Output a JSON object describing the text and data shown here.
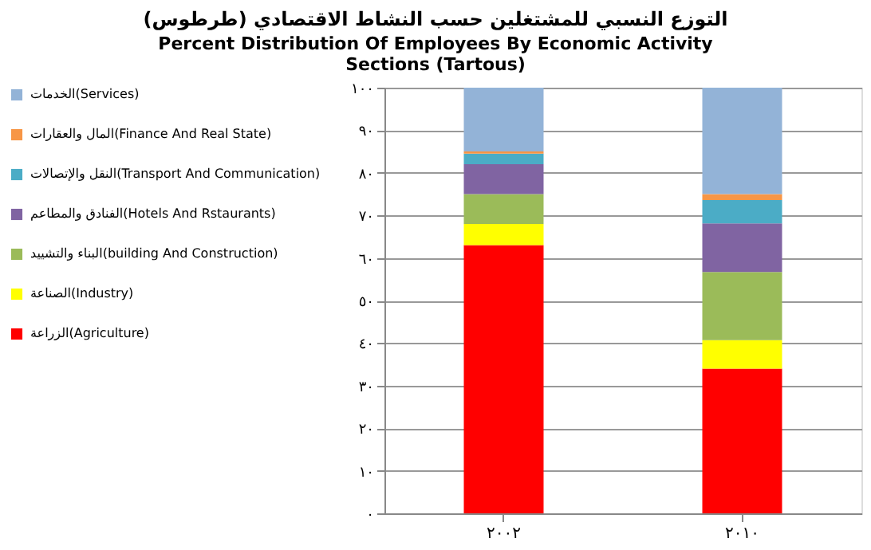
{
  "chart_data": {
    "type": "bar",
    "stacked": true,
    "title": "التوزع النسبي للمشتغلين حسب النشاط الاقتصادي (طرطوس)",
    "subtitle": "Percent Distribution Of Employees By Economic Activity Sections (Tartous)",
    "categories": [
      "٢٠٠٢",
      "٢٠١٠"
    ],
    "series": [
      {
        "name": "الزراعة(Agriculture)",
        "color": "#ff0000",
        "values": [
          63,
          34
        ]
      },
      {
        "name": "الصناعة(Industry)",
        "color": "#ffff00",
        "values": [
          5,
          6.7
        ]
      },
      {
        "name": "البناء والتشييد(building And Construction)",
        "color": "#9bbb59",
        "values": [
          7,
          16
        ]
      },
      {
        "name": "الفنادق والمطاعم(Hotels And Rstaurants)",
        "color": "#8064a2",
        "values": [
          7,
          11.4
        ]
      },
      {
        "name": "النقل والإتصالات(Transport And Communication)",
        "color": "#4bacc6",
        "values": [
          2.5,
          5.5
        ]
      },
      {
        "name": "المال والعقارات(Finance And Real State)",
        "color": "#f79646",
        "values": [
          0.5,
          1.4
        ]
      },
      {
        "name": "الخدمات(Services)",
        "color": "#93b3d7",
        "values": [
          15,
          25
        ]
      }
    ],
    "ylim": [
      0,
      100
    ],
    "yticks": [
      {
        "value": 0,
        "label": "٠"
      },
      {
        "value": 10,
        "label": "١٠"
      },
      {
        "value": 20,
        "label": "٢٠"
      },
      {
        "value": 30,
        "label": "٣٠"
      },
      {
        "value": 40,
        "label": "٤٠"
      },
      {
        "value": 50,
        "label": "٥٠"
      },
      {
        "value": 60,
        "label": "٦٠"
      },
      {
        "value": 70,
        "label": "٧٠"
      },
      {
        "value": 80,
        "label": "٨٠"
      },
      {
        "value": 90,
        "label": "٩٠"
      },
      {
        "value": 100,
        "label": "١٠٠"
      }
    ],
    "grid": "y",
    "legend": "left"
  }
}
